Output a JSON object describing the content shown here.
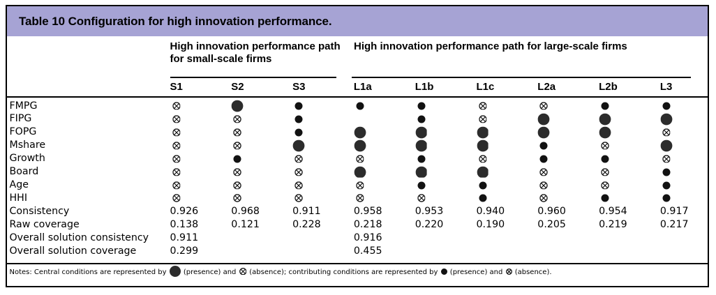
{
  "title": "Table 10 Configuration for high innovation performance.",
  "header_band_color": "#a6a3d4",
  "column_groups": [
    {
      "label": "High innovation performance path for small-scale firms",
      "columns": [
        "S1",
        "S2",
        "S3"
      ]
    },
    {
      "label": "High innovation performance path for large-scale firms",
      "columns": [
        "L1a",
        "L1b",
        "L1c",
        "L2a",
        "L2b",
        "L3"
      ]
    }
  ],
  "columns": [
    "S1",
    "S2",
    "S3",
    "L1a",
    "L1b",
    "L1c",
    "L2a",
    "L2b",
    "L3"
  ],
  "symbol_key": {
    "CP": "central-condition-presence-large-filled-circle",
    "CA": "central-condition-absence-large-circled-cross",
    "pp": "contributing-condition-presence-small-filled-circle",
    "pa": "contributing-condition-absence-small-circled-cross",
    "": "blank"
  },
  "rows": [
    {
      "label": "FMPG",
      "type": "symbols",
      "cells": [
        "pa",
        "CP",
        "pp",
        "pp",
        "pp",
        "pa",
        "pa",
        "pp",
        "pp"
      ]
    },
    {
      "label": "FIPG",
      "type": "symbols",
      "cells": [
        "pa",
        "pa",
        "pp",
        "",
        "pp",
        "pa",
        "CP",
        "CP",
        "CP"
      ]
    },
    {
      "label": "FOPG",
      "type": "symbols",
      "cells": [
        "pa",
        "pa",
        "pp",
        "CP",
        "CP",
        "CP",
        "CP",
        "CP",
        "pa"
      ]
    },
    {
      "label": "Mshare",
      "type": "symbols",
      "cells": [
        "pa",
        "pa",
        "CP",
        "CP",
        "CP",
        "CP",
        "pp",
        "pa",
        "CP"
      ]
    },
    {
      "label": "Growth",
      "type": "symbols",
      "cells": [
        "pa",
        "pp",
        "pa",
        "pa",
        "pp",
        "pa",
        "pp",
        "pp",
        "pa"
      ]
    },
    {
      "label": "Board",
      "type": "symbols",
      "cells": [
        "pa",
        "pa",
        "pa",
        "CP",
        "CP",
        "CP",
        "pa",
        "pa",
        "pp"
      ]
    },
    {
      "label": "Age",
      "type": "symbols",
      "cells": [
        "pa",
        "pa",
        "pa",
        "pa",
        "pp",
        "pp",
        "pa",
        "pa",
        "pp"
      ]
    },
    {
      "label": "HHI",
      "type": "symbols",
      "cells": [
        "pa",
        "pa",
        "pa",
        "pa",
        "pa",
        "pp",
        "pa",
        "pp",
        "pp"
      ]
    },
    {
      "label": "Consistency",
      "type": "values",
      "cells": [
        "0.926",
        "0.968",
        "0.911",
        "0.958",
        "0.953",
        "0.940",
        "0.960",
        "0.954",
        "0.917"
      ]
    },
    {
      "label": "Raw coverage",
      "type": "values",
      "cells": [
        "0.138",
        "0.121",
        "0.228",
        "0.218",
        "0.220",
        "0.190",
        "0.205",
        "0.219",
        "0.217"
      ]
    },
    {
      "label": "Overall solution consistency",
      "type": "values",
      "cells": [
        "0.911",
        "",
        "",
        "0.916",
        "",
        "",
        "",
        "",
        ""
      ]
    },
    {
      "label": "Overall solution coverage",
      "type": "values",
      "cells": [
        "0.299",
        "",
        "",
        "0.455",
        "",
        "",
        "",
        "",
        ""
      ]
    }
  ],
  "notes_parts": [
    {
      "t": "Notes: Central conditions are represented by "
    },
    {
      "s": "CP"
    },
    {
      "t": " (presence) and "
    },
    {
      "s": "CA"
    },
    {
      "t": " (absence); contributing conditions are represented by "
    },
    {
      "s": "pp"
    },
    {
      "t": " (presence) and "
    },
    {
      "s": "pa"
    },
    {
      "t": " (absence)."
    }
  ]
}
